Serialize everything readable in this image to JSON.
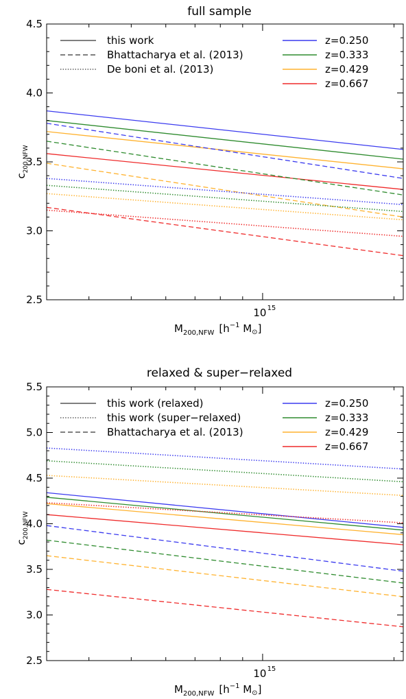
{
  "chart_data": [
    {
      "type": "line",
      "title": "full sample",
      "xlabel_main": "M",
      "xlabel_sub": "200,NFW",
      "xlabel_units": "[h",
      "xlabel_exp": "−1",
      "xlabel_units2": " M",
      "xlabel_sun": "⊙",
      "xlabel_close": "]",
      "ylabel_main": "c",
      "ylabel_sub": "200,NFW",
      "x_log": true,
      "xlim": [
        320000000000000.0,
        2100000000000000.0
      ],
      "ylim": [
        2.5,
        4.5
      ],
      "yticks": [
        "2.5",
        "3.0",
        "3.5",
        "4.0",
        "4.5"
      ],
      "ytick_values": [
        2.5,
        3.0,
        3.5,
        4.0,
        4.5
      ],
      "xticks": [
        {
          "base": "10",
          "exp": "15",
          "value": 1000000000000000.0
        }
      ],
      "style_legend": [
        {
          "label": "this work",
          "dash": "solid"
        },
        {
          "label": "Bhattacharya et al. (2013)",
          "dash": "dashed"
        },
        {
          "label": "De boni et al. (2013)",
          "dash": "dotted"
        }
      ],
      "color_legend": [
        {
          "label": "z=0.250",
          "color": "#3a3aef"
        },
        {
          "label": "z=0.333",
          "color": "#2e8b2e"
        },
        {
          "label": "z=0.429",
          "color": "#ffb22e"
        },
        {
          "label": "z=0.667",
          "color": "#ef2a2a"
        }
      ],
      "series": [
        {
          "style": "solid",
          "color": "#3a3aef",
          "x": [
            320000000000000.0,
            2100000000000000.0
          ],
          "y": [
            3.87,
            3.59
          ]
        },
        {
          "style": "solid",
          "color": "#2e8b2e",
          "x": [
            320000000000000.0,
            2100000000000000.0
          ],
          "y": [
            3.8,
            3.52
          ]
        },
        {
          "style": "solid",
          "color": "#ffb22e",
          "x": [
            320000000000000.0,
            2100000000000000.0
          ],
          "y": [
            3.72,
            3.45
          ]
        },
        {
          "style": "solid",
          "color": "#ef2a2a",
          "x": [
            320000000000000.0,
            2100000000000000.0
          ],
          "y": [
            3.56,
            3.3
          ]
        },
        {
          "style": "dashed",
          "color": "#3a3aef",
          "x": [
            320000000000000.0,
            2100000000000000.0
          ],
          "y": [
            3.78,
            3.38
          ]
        },
        {
          "style": "dashed",
          "color": "#2e8b2e",
          "x": [
            320000000000000.0,
            2100000000000000.0
          ],
          "y": [
            3.65,
            3.26
          ]
        },
        {
          "style": "dashed",
          "color": "#ffb22e",
          "x": [
            320000000000000.0,
            2100000000000000.0
          ],
          "y": [
            3.49,
            3.1
          ]
        },
        {
          "style": "dashed",
          "color": "#ef2a2a",
          "x": [
            320000000000000.0,
            2100000000000000.0
          ],
          "y": [
            3.17,
            2.82
          ]
        },
        {
          "style": "dotted",
          "color": "#3a3aef",
          "x": [
            320000000000000.0,
            2100000000000000.0
          ],
          "y": [
            3.38,
            3.19
          ]
        },
        {
          "style": "dotted",
          "color": "#2e8b2e",
          "x": [
            320000000000000.0,
            2100000000000000.0
          ],
          "y": [
            3.33,
            3.14
          ]
        },
        {
          "style": "dotted",
          "color": "#ffb22e",
          "x": [
            320000000000000.0,
            2100000000000000.0
          ],
          "y": [
            3.27,
            3.08
          ]
        },
        {
          "style": "dotted",
          "color": "#ef2a2a",
          "x": [
            320000000000000.0,
            2100000000000000.0
          ],
          "y": [
            3.15,
            2.96
          ]
        }
      ]
    },
    {
      "type": "line",
      "title": "relaxed & super−relaxed",
      "xlabel_main": "M",
      "xlabel_sub": "200,NFW",
      "xlabel_units": "[h",
      "xlabel_exp": "−1",
      "xlabel_units2": " M",
      "xlabel_sun": "⊙",
      "xlabel_close": "]",
      "ylabel_main": "c",
      "ylabel_sub": "200,NFW",
      "x_log": true,
      "xlim": [
        320000000000000.0,
        2100000000000000.0
      ],
      "ylim": [
        2.5,
        5.5
      ],
      "yticks": [
        "2.5",
        "3.0",
        "3.5",
        "4.0",
        "4.5",
        "5.0",
        "5.5"
      ],
      "ytick_values": [
        2.5,
        3.0,
        3.5,
        4.0,
        4.5,
        5.0,
        5.5
      ],
      "xticks": [
        {
          "base": "10",
          "exp": "15",
          "value": 1000000000000000.0
        }
      ],
      "style_legend": [
        {
          "label": "this work (relaxed)",
          "dash": "solid"
        },
        {
          "label": "this work (super−relaxed)",
          "dash": "dotted"
        },
        {
          "label": "Bhattacharya et al. (2013)",
          "dash": "dashed"
        }
      ],
      "color_legend": [
        {
          "label": "z=0.250",
          "color": "#3a3aef"
        },
        {
          "label": "z=0.333",
          "color": "#2e8b2e"
        },
        {
          "label": "z=0.429",
          "color": "#ffb22e"
        },
        {
          "label": "z=0.667",
          "color": "#ef2a2a"
        }
      ],
      "series": [
        {
          "style": "solid",
          "color": "#3a3aef",
          "x": [
            320000000000000.0,
            2100000000000000.0
          ],
          "y": [
            4.34,
            3.96
          ]
        },
        {
          "style": "solid",
          "color": "#2e8b2e",
          "x": [
            320000000000000.0,
            2100000000000000.0
          ],
          "y": [
            4.29,
            3.93
          ]
        },
        {
          "style": "solid",
          "color": "#ffb22e",
          "x": [
            320000000000000.0,
            2100000000000000.0
          ],
          "y": [
            4.22,
            3.88
          ]
        },
        {
          "style": "solid",
          "color": "#ef2a2a",
          "x": [
            320000000000000.0,
            2100000000000000.0
          ],
          "y": [
            4.1,
            3.77
          ]
        },
        {
          "style": "dotted",
          "color": "#3a3aef",
          "x": [
            320000000000000.0,
            2100000000000000.0
          ],
          "y": [
            4.83,
            4.6
          ]
        },
        {
          "style": "dotted",
          "color": "#2e8b2e",
          "x": [
            320000000000000.0,
            2100000000000000.0
          ],
          "y": [
            4.69,
            4.46
          ]
        },
        {
          "style": "dotted",
          "color": "#ffb22e",
          "x": [
            320000000000000.0,
            2100000000000000.0
          ],
          "y": [
            4.53,
            4.31
          ]
        },
        {
          "style": "dotted",
          "color": "#ef2a2a",
          "x": [
            320000000000000.0,
            2100000000000000.0
          ],
          "y": [
            4.23,
            4.01
          ]
        },
        {
          "style": "dashed",
          "color": "#3a3aef",
          "x": [
            320000000000000.0,
            2100000000000000.0
          ],
          "y": [
            3.98,
            3.48
          ]
        },
        {
          "style": "dashed",
          "color": "#2e8b2e",
          "x": [
            320000000000000.0,
            2100000000000000.0
          ],
          "y": [
            3.82,
            3.35
          ]
        },
        {
          "style": "dashed",
          "color": "#ffb22e",
          "x": [
            320000000000000.0,
            2100000000000000.0
          ],
          "y": [
            3.65,
            3.2
          ]
        },
        {
          "style": "dashed",
          "color": "#ef2a2a",
          "x": [
            320000000000000.0,
            2100000000000000.0
          ],
          "y": [
            3.28,
            2.87
          ]
        }
      ]
    }
  ]
}
